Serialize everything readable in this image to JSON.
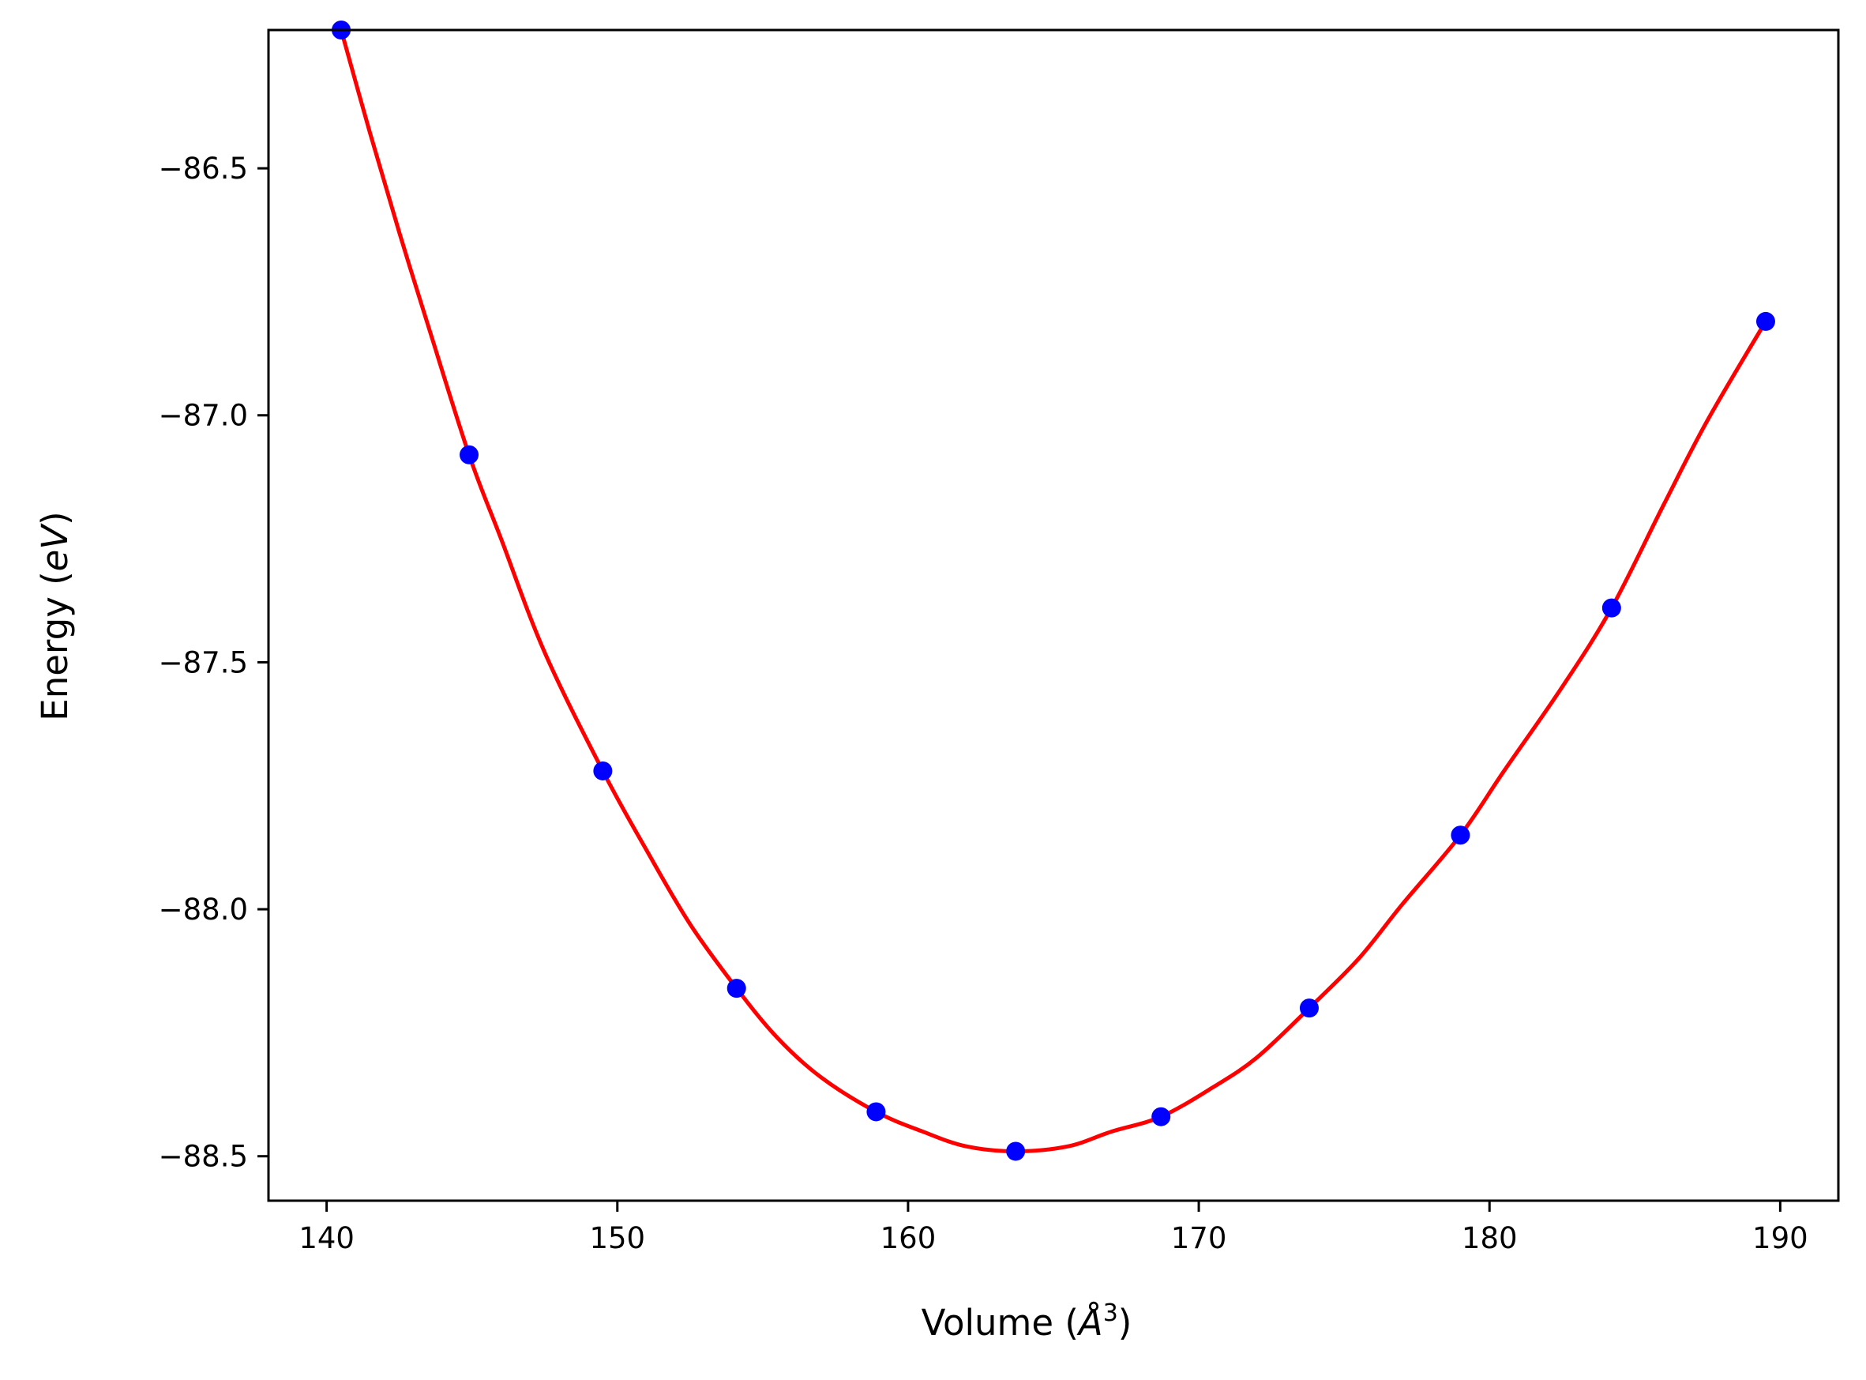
{
  "chart_data": {
    "type": "scatter",
    "title": "",
    "xlabel": {
      "prefix": "Volume (",
      "symbol": "Å",
      "superscript": "3",
      "suffix": ")"
    },
    "ylabel": {
      "prefix": "Energy (",
      "unit": "eV",
      "suffix": ")"
    },
    "xlim": [
      138,
      192
    ],
    "ylim": [
      -88.59,
      -86.22
    ],
    "xticks": [
      140,
      150,
      160,
      170,
      180,
      190
    ],
    "yticks": [
      -86.5,
      -87.0,
      -87.5,
      -88.0,
      -88.5
    ],
    "xtick_labels": [
      "140",
      "150",
      "160",
      "170",
      "180",
      "190"
    ],
    "ytick_labels": [
      "−86.5",
      "−87.0",
      "−87.5",
      "−88.0",
      "−88.5"
    ],
    "grid": false,
    "legend": "none",
    "series": [
      {
        "kind": "points",
        "color": "#0000ff",
        "x": [
          140.5,
          144.9,
          149.5,
          154.1,
          158.9,
          163.7,
          168.7,
          173.8,
          179.0,
          184.2,
          189.5
        ],
        "y": [
          -86.22,
          -87.08,
          -87.72,
          -88.16,
          -88.41,
          -88.49,
          -88.42,
          -88.2,
          -87.85,
          -87.39,
          -86.81
        ]
      },
      {
        "kind": "fit-line",
        "color": "#ff0000",
        "x": [
          140.5,
          141.5,
          142.5,
          143.5,
          144.9,
          146.0,
          147.5,
          149.5,
          151.0,
          152.5,
          154.1,
          155.5,
          157.0,
          158.9,
          160.5,
          162.0,
          163.7,
          165.5,
          167.0,
          168.7,
          170.5,
          172.0,
          173.8,
          175.5,
          177.0,
          179.0,
          180.5,
          182.5,
          184.2,
          186.0,
          187.5,
          189.5
        ],
        "y": [
          -86.22,
          -86.43,
          -86.63,
          -86.82,
          -87.08,
          -87.25,
          -87.48,
          -87.72,
          -87.88,
          -88.03,
          -88.16,
          -88.26,
          -88.34,
          -88.41,
          -88.45,
          -88.48,
          -88.49,
          -88.48,
          -88.45,
          -88.42,
          -88.36,
          -88.3,
          -88.2,
          -88.1,
          -87.99,
          -87.85,
          -87.72,
          -87.55,
          -87.39,
          -87.18,
          -87.01,
          -86.81
        ]
      }
    ]
  },
  "colors": {
    "points": "#0000ff",
    "line": "#ff0000",
    "axes": "#000000",
    "background": "#ffffff"
  }
}
